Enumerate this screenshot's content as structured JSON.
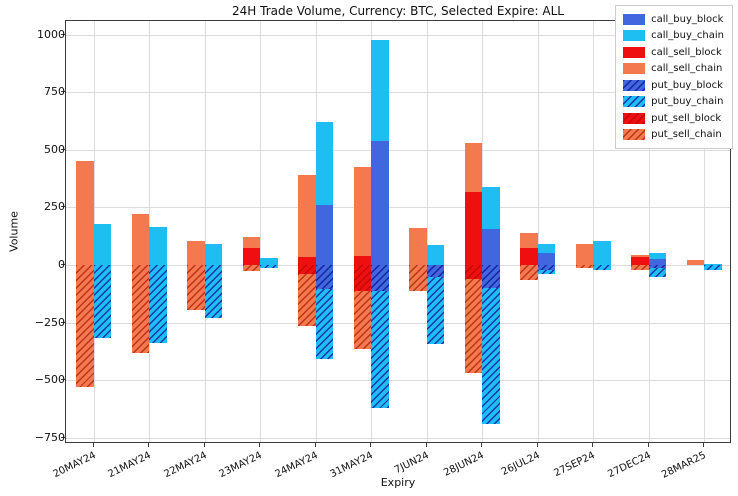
{
  "chart_data": {
    "type": "bar",
    "title": "24H Trade Volume, Currency: BTC, Selected Expire: ALL",
    "xlabel": "Expiry",
    "ylabel": "Volume",
    "ylim": [
      -790,
      1030
    ],
    "yticks": [
      1000,
      750,
      500,
      250,
      0,
      -250,
      -500,
      -750
    ],
    "grid": true,
    "legend_position": "upper right",
    "categories": [
      "20MAY24",
      "21MAY24",
      "22MAY24",
      "23MAY24",
      "24MAY24",
      "31MAY24",
      "7JUN24",
      "28JUN24",
      "26JUL24",
      "27SEP24",
      "27DEC24",
      "28MAR25"
    ],
    "colors": {
      "buy_block": "#4166e0",
      "buy_chain": "#1fbef2",
      "sell_block": "#ef0e10",
      "sell_chain": "#f5794e",
      "grid": "#dcdcdc"
    },
    "series": [
      {
        "name": "call_buy_block",
        "color": "#4166e0",
        "hatch": false,
        "values": [
          0,
          0,
          0,
          0,
          260,
          540,
          0,
          155,
          50,
          0,
          25,
          0
        ]
      },
      {
        "name": "call_buy_chain",
        "color": "#1fbef2",
        "hatch": false,
        "values": [
          180,
          165,
          90,
          30,
          360,
          435,
          85,
          185,
          40,
          105,
          25,
          5
        ]
      },
      {
        "name": "call_sell_block",
        "color": "#ef0e10",
        "hatch": false,
        "values": [
          0,
          0,
          0,
          75,
          35,
          40,
          0,
          315,
          75,
          0,
          35,
          0
        ]
      },
      {
        "name": "call_sell_chain",
        "color": "#f5794e",
        "hatch": false,
        "values": [
          450,
          220,
          105,
          45,
          355,
          385,
          160,
          215,
          65,
          90,
          10,
          20
        ]
      },
      {
        "name": "put_buy_block",
        "color": "#4166e0",
        "hatch": true,
        "values": [
          0,
          0,
          0,
          0,
          -105,
          -115,
          -50,
          -100,
          -20,
          0,
          -15,
          0
        ]
      },
      {
        "name": "put_buy_chain",
        "color": "#1fbef2",
        "hatch": true,
        "values": [
          -315,
          -340,
          -230,
          -15,
          -305,
          -505,
          -295,
          -590,
          -20,
          -20,
          -35,
          -20
        ]
      },
      {
        "name": "put_sell_block",
        "color": "#ef0e10",
        "hatch": true,
        "values": [
          0,
          0,
          0,
          0,
          -40,
          -115,
          0,
          -60,
          0,
          0,
          0,
          0
        ]
      },
      {
        "name": "put_sell_chain",
        "color": "#f5794e",
        "hatch": true,
        "values": [
          -530,
          -380,
          -195,
          -25,
          -225,
          -250,
          -115,
          -410,
          -65,
          -15,
          -20,
          0
        ]
      }
    ],
    "legend": [
      "call_buy_block",
      "call_buy_chain",
      "call_sell_block",
      "call_sell_chain",
      "put_buy_block",
      "put_buy_chain",
      "put_sell_block",
      "put_sell_chain"
    ]
  }
}
